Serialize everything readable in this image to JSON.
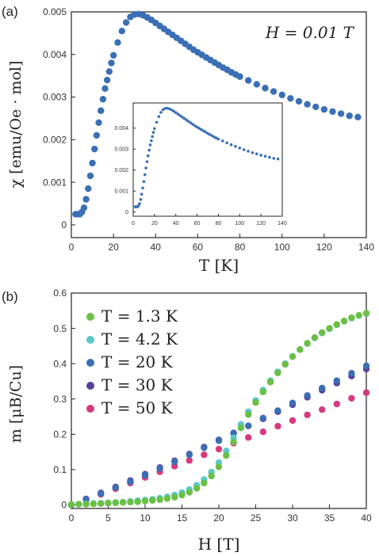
{
  "chart_data": [
    {
      "panel": "(a)",
      "type": "scatter",
      "annotation": "H = 0.01 T",
      "xlabel": "T [K]",
      "ylabel": "χ [emu/Oe · mol]",
      "xlim": [
        0,
        140
      ],
      "ylim": [
        -0.0003,
        0.005
      ],
      "xticks": [
        "0",
        "20",
        "40",
        "60",
        "80",
        "100",
        "120",
        "140"
      ],
      "yticks": [
        "0",
        "0.001",
        "0.002",
        "0.003",
        "0.004",
        "0.005"
      ],
      "x": [
        2,
        3,
        4,
        5,
        6,
        7,
        8,
        9,
        10,
        11,
        12,
        13,
        14,
        15,
        16,
        17,
        18,
        19,
        20,
        22,
        24,
        26,
        28,
        30,
        32,
        34,
        36,
        38,
        40,
        42,
        44,
        46,
        48,
        50,
        52,
        54,
        56,
        58,
        60,
        62,
        64,
        66,
        68,
        70,
        72,
        74,
        76,
        78,
        80,
        84,
        88,
        92,
        96,
        100,
        104,
        108,
        112,
        116,
        120,
        124,
        128,
        132,
        136
      ],
      "y": [
        0.00025,
        0.00025,
        0.00025,
        0.0003,
        0.0004,
        0.0006,
        0.00085,
        0.00115,
        0.00145,
        0.00178,
        0.0021,
        0.0024,
        0.00268,
        0.00295,
        0.0032,
        0.0034,
        0.0036,
        0.0038,
        0.00398,
        0.00428,
        0.00455,
        0.00475,
        0.00488,
        0.00494,
        0.00495,
        0.00492,
        0.00487,
        0.00481,
        0.00474,
        0.00467,
        0.0046,
        0.00453,
        0.00446,
        0.00439,
        0.00432,
        0.00425,
        0.00418,
        0.00411,
        0.00405,
        0.00399,
        0.00393,
        0.00387,
        0.00381,
        0.00375,
        0.00369,
        0.00364,
        0.00358,
        0.00353,
        0.00348,
        0.00339,
        0.0033,
        0.00321,
        0.00313,
        0.00305,
        0.00297,
        0.0029,
        0.00283,
        0.00277,
        0.00271,
        0.00266,
        0.00261,
        0.00256,
        0.00253
      ],
      "color": "#3a6fb5",
      "inset": {
        "type": "scatter",
        "xlim": [
          0,
          140
        ],
        "ylim": [
          -0.0002,
          0.0052
        ],
        "xticks": [
          "0",
          "20",
          "40",
          "60",
          "80",
          "100",
          "120",
          "140"
        ],
        "yticks": [
          "0",
          "0.001",
          "0.002",
          "0.003",
          "0.004"
        ],
        "note": "same data as main panel"
      }
    },
    {
      "panel": "(b)",
      "type": "scatter",
      "xlabel": "H [T]",
      "ylabel": "m [μB/Cu]",
      "xlim": [
        0,
        40
      ],
      "ylim": [
        -0.01,
        0.6
      ],
      "xticks": [
        "0",
        "5",
        "10",
        "15",
        "20",
        "25",
        "30",
        "35",
        "40"
      ],
      "yticks": [
        "0",
        "0.1",
        "0.2",
        "0.3",
        "0.4",
        "0.5",
        "0.6"
      ],
      "legend": "top-left",
      "series": [
        {
          "name": "T = 1.3 K",
          "color": "#6abf45",
          "x": [
            0,
            1,
            2,
            3,
            4,
            5,
            6,
            7,
            8,
            9,
            10,
            11,
            12,
            13,
            14,
            15,
            16,
            17,
            18,
            19,
            20,
            21,
            22,
            23,
            24,
            25,
            26,
            27,
            28,
            29,
            30,
            31,
            32,
            33,
            34,
            35,
            36,
            37,
            38,
            39,
            40
          ],
          "y": [
            0.001,
            0.002,
            0.002,
            0.003,
            0.004,
            0.005,
            0.006,
            0.007,
            0.008,
            0.009,
            0.011,
            0.013,
            0.015,
            0.018,
            0.022,
            0.028,
            0.036,
            0.047,
            0.062,
            0.082,
            0.108,
            0.14,
            0.178,
            0.218,
            0.256,
            0.29,
            0.32,
            0.348,
            0.374,
            0.398,
            0.42,
            0.44,
            0.458,
            0.474,
            0.488,
            0.5,
            0.511,
            0.521,
            0.53,
            0.537,
            0.543
          ]
        },
        {
          "name": "T = 4.2 K",
          "color": "#5bc8c8",
          "x": [
            0,
            1,
            2,
            3,
            4,
            5,
            6,
            7,
            8,
            9,
            10,
            11,
            12,
            13,
            14,
            15,
            16,
            17,
            18,
            19,
            20,
            21,
            22,
            23,
            24,
            25,
            26,
            27,
            28,
            29,
            30,
            31,
            32,
            33,
            34,
            35,
            36,
            37,
            38,
            39,
            40
          ],
          "y": [
            0.001,
            0.002,
            0.003,
            0.004,
            0.005,
            0.006,
            0.007,
            0.008,
            0.01,
            0.012,
            0.014,
            0.016,
            0.019,
            0.023,
            0.028,
            0.035,
            0.044,
            0.056,
            0.072,
            0.093,
            0.12,
            0.153,
            0.19,
            0.228,
            0.264,
            0.296,
            0.325,
            0.352,
            0.377,
            0.4,
            0.421,
            0.44,
            0.457,
            0.473,
            0.487,
            0.499,
            0.51,
            0.52,
            0.529,
            0.536,
            0.542
          ]
        },
        {
          "name": "T = 20 K",
          "color": "#3a6fb5",
          "x": [
            0,
            2,
            4,
            6,
            8,
            10,
            12,
            14,
            16,
            18,
            20,
            22,
            24,
            26,
            28,
            30,
            32,
            34,
            36,
            38,
            40
          ],
          "y": [
            0.0,
            0.016,
            0.032,
            0.049,
            0.066,
            0.084,
            0.103,
            0.122,
            0.142,
            0.162,
            0.182,
            0.203,
            0.224,
            0.246,
            0.267,
            0.289,
            0.31,
            0.331,
            0.352,
            0.373,
            0.394
          ]
        },
        {
          "name": "T = 30 K",
          "color": "#5a3f9e",
          "x": [
            0,
            2,
            4,
            6,
            8,
            10,
            12,
            14,
            16,
            18,
            20,
            22,
            24,
            26,
            28,
            30,
            32,
            34,
            36,
            38,
            40
          ],
          "y": [
            0.0,
            0.017,
            0.034,
            0.051,
            0.069,
            0.087,
            0.106,
            0.125,
            0.144,
            0.164,
            0.184,
            0.204,
            0.224,
            0.244,
            0.264,
            0.284,
            0.305,
            0.325,
            0.345,
            0.365,
            0.385
          ]
        },
        {
          "name": "T = 50 K",
          "color": "#d63a7e",
          "x": [
            0,
            2,
            4,
            6,
            8,
            10,
            12,
            14,
            16,
            18,
            20,
            22,
            24,
            26,
            28,
            30,
            32,
            34,
            36,
            38,
            40
          ],
          "y": [
            0.0,
            0.015,
            0.03,
            0.046,
            0.062,
            0.078,
            0.094,
            0.11,
            0.126,
            0.142,
            0.158,
            0.175,
            0.191,
            0.207,
            0.223,
            0.239,
            0.255,
            0.27,
            0.286,
            0.302,
            0.318
          ]
        }
      ]
    }
  ]
}
